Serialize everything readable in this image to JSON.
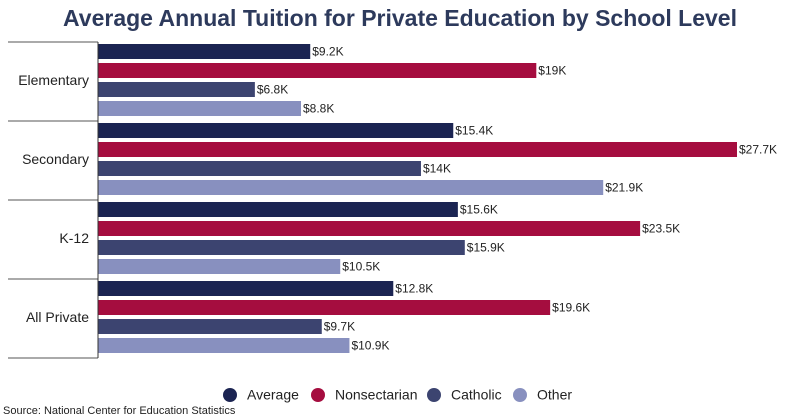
{
  "chart_data": {
    "type": "bar",
    "orientation": "horizontal",
    "title": "Average Annual Tuition for Private Education by School Level",
    "categories": [
      "Elementary",
      "Secondary",
      "K-12",
      "All Private"
    ],
    "series": [
      {
        "name": "Average",
        "color": "#1b2452",
        "values": [
          9.2,
          15.4,
          15.6,
          12.8
        ],
        "value_labels": [
          "$9.2K",
          "$15.4K",
          "$15.6K",
          "$12.8K"
        ]
      },
      {
        "name": "Nonsectarian",
        "color": "#a50d3f",
        "values": [
          19,
          27.7,
          23.5,
          19.6
        ],
        "value_labels": [
          "$19K",
          "$27.7K",
          "$23.5K",
          "$19.6K"
        ]
      },
      {
        "name": "Catholic",
        "color": "#3c4470",
        "values": [
          6.8,
          14,
          15.9,
          9.7
        ],
        "value_labels": [
          "$6.8K",
          "$14K",
          "$15.9K",
          "$9.7K"
        ]
      },
      {
        "name": "Other",
        "color": "#8890bf",
        "values": [
          8.8,
          21.9,
          10.5,
          10.9
        ],
        "value_labels": [
          "$8.8K",
          "$21.9K",
          "$10.5K",
          "$10.9K"
        ]
      }
    ],
    "legend": "bottom",
    "source": "Source: National Center for Education Statistics"
  }
}
